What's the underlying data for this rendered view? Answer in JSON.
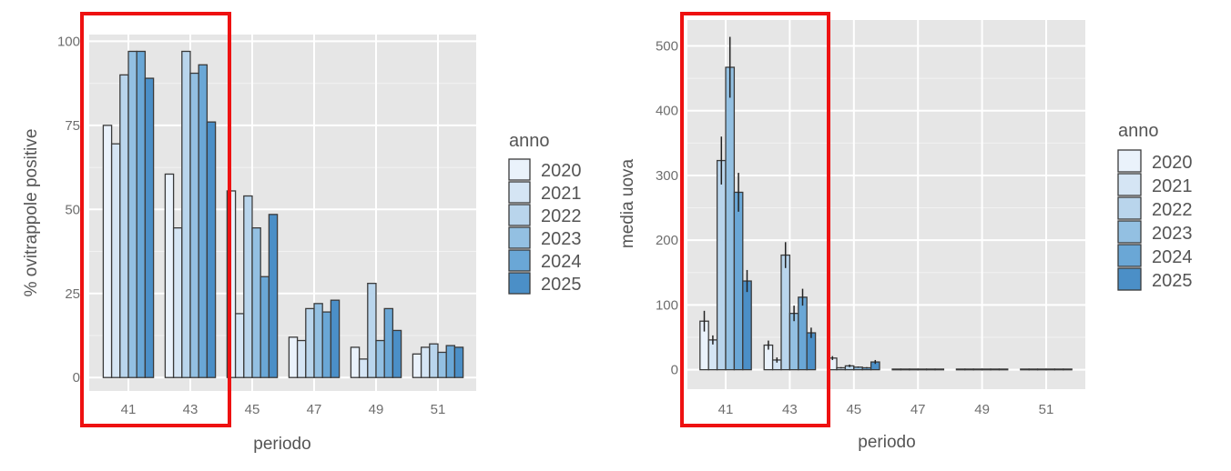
{
  "chart_data": [
    {
      "type": "bar",
      "xlabel": "periodo",
      "ylabel": "% ovitrappole positive",
      "ylim": [
        -4,
        102
      ],
      "yticks": [
        0,
        25,
        50,
        75,
        100
      ],
      "categories": [
        "41",
        "43",
        "45",
        "47",
        "49",
        "51"
      ],
      "legend_title": "anno",
      "legend_position": "right",
      "grid": true,
      "highlight": {
        "label": "red box",
        "from_category": "41",
        "to_category": "43",
        "color": "#ee1111"
      },
      "series": [
        {
          "name": "2020",
          "color": "#eaf2fb",
          "values": [
            75,
            60.5,
            55.5,
            12,
            9,
            7
          ]
        },
        {
          "name": "2021",
          "color": "#d5e5f4",
          "values": [
            69.5,
            44.5,
            19,
            11,
            5.5,
            9
          ]
        },
        {
          "name": "2022",
          "color": "#b9d5ec",
          "values": [
            90,
            97,
            54,
            20.5,
            28,
            10
          ]
        },
        {
          "name": "2023",
          "color": "#93c0e2",
          "values": [
            97,
            90.5,
            44.5,
            22,
            11,
            7.5
          ]
        },
        {
          "name": "2024",
          "color": "#6aa7d6",
          "values": [
            97,
            93,
            30,
            19.5,
            20.5,
            9.5
          ]
        },
        {
          "name": "2025",
          "color": "#4b8fc7",
          "values": [
            89,
            76,
            48.5,
            23,
            14,
            9
          ]
        }
      ]
    },
    {
      "type": "bar",
      "xlabel": "periodo",
      "ylabel": "media uova",
      "ylim": [
        -30,
        540
      ],
      "yticks": [
        0,
        100,
        200,
        300,
        400,
        500
      ],
      "categories": [
        "41",
        "43",
        "45",
        "47",
        "49",
        "51"
      ],
      "legend_title": "anno",
      "legend_position": "right",
      "grid": true,
      "error_bars": true,
      "highlight": {
        "label": "red box",
        "from_category": "41",
        "to_category": "43",
        "color": "#ee1111"
      },
      "series": [
        {
          "name": "2020",
          "color": "#eaf2fb",
          "values": [
            75,
            38,
            18,
            1,
            1,
            1
          ],
          "errors": [
            16,
            7,
            3,
            0,
            0,
            0
          ]
        },
        {
          "name": "2021",
          "color": "#d5e5f4",
          "values": [
            46,
            15,
            3,
            1,
            1,
            1
          ],
          "errors": [
            7,
            4,
            1,
            0,
            0,
            0
          ]
        },
        {
          "name": "2022",
          "color": "#b9d5ec",
          "values": [
            323,
            177,
            6,
            1,
            1,
            1
          ],
          "errors": [
            37,
            20,
            2,
            0,
            0,
            0
          ]
        },
        {
          "name": "2023",
          "color": "#93c0e2",
          "values": [
            467,
            87,
            4,
            1,
            1,
            1
          ],
          "errors": [
            47,
            12,
            1,
            0,
            0,
            0
          ]
        },
        {
          "name": "2024",
          "color": "#6aa7d6",
          "values": [
            274,
            112,
            3,
            1,
            1,
            1
          ],
          "errors": [
            30,
            13,
            1,
            0,
            0,
            0
          ]
        },
        {
          "name": "2025",
          "color": "#4b8fc7",
          "values": [
            137,
            57,
            12,
            1,
            1,
            1
          ],
          "errors": [
            17,
            8,
            3,
            0,
            0,
            0
          ]
        }
      ]
    }
  ]
}
